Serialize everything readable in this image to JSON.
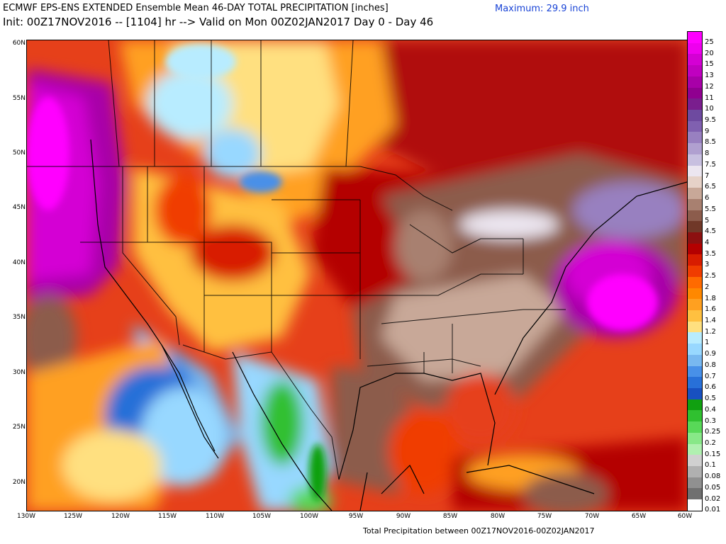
{
  "header": {
    "title_line1": "ECMWF EPS-ENS EXTENDED Ensemble Mean 46-DAY TOTAL PRECIPITATION [inches]",
    "maximum": "Maximum: 29.9 inch",
    "title_line2": "Init: 00Z17NOV2016 -- [1104] hr --> Valid on Mon 00Z02JAN2017  Day 0 - Day 46"
  },
  "axes": {
    "lat_labels": [
      "60N",
      "55N",
      "50N",
      "45N",
      "40N",
      "35N",
      "30N",
      "25N",
      "20N"
    ],
    "lon_labels": [
      "130W",
      "125W",
      "120W",
      "115W",
      "110W",
      "105W",
      "100W",
      "95W",
      "90W",
      "85W",
      "80W",
      "75W",
      "70W",
      "65W",
      "60W"
    ]
  },
  "footer": "Total Precipitation between 00Z17NOV2016-00Z02JAN2017",
  "colorbar": {
    "labels": [
      "25",
      "20",
      "15",
      "13",
      "12",
      "11",
      "10",
      "9.5",
      "9",
      "8.5",
      "8",
      "7.5",
      "7",
      "6.5",
      "6",
      "5.5",
      "5",
      "4.5",
      "4",
      "3.5",
      "3",
      "2.5",
      "2",
      "1.8",
      "1.6",
      "1.4",
      "1.2",
      "1",
      "0.9",
      "0.8",
      "0.7",
      "0.6",
      "0.5",
      "0.4",
      "0.3",
      "0.25",
      "0.2",
      "0.15",
      "0.1",
      "0.08",
      "0.05",
      "0.02",
      "0.01"
    ],
    "colors": [
      "#ff00ff",
      "#ee00ee",
      "#d400d4",
      "#c000c0",
      "#a800a8",
      "#900090",
      "#7a1e8e",
      "#6e4aa0",
      "#8060b0",
      "#9880c0",
      "#b0a0d0",
      "#c8c0e0",
      "#ece6f0",
      "#e6d2c8",
      "#c8a898",
      "#a88070",
      "#8c5c4c",
      "#703828",
      "#8c1010",
      "#b40000",
      "#d81c00",
      "#f03c00",
      "#ff6a00",
      "#ff8800",
      "#ffa020",
      "#ffc040",
      "#ffe080",
      "#b8ecff",
      "#98d8ff",
      "#78b8f0",
      "#4890e8",
      "#2870d8",
      "#1850c0",
      "#10a010",
      "#30c030",
      "#58d858",
      "#88e888",
      "#b0f0b0",
      "#d0d0d0",
      "#b0b0b0",
      "#909090",
      "#707070",
      "#ffffff"
    ]
  }
}
